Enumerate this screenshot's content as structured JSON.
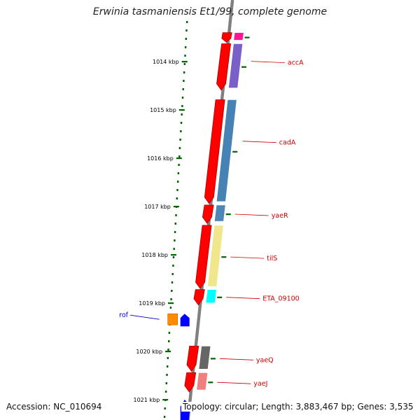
{
  "title": "Erwinia tasmaniensis Et1/99, complete genome",
  "footer": {
    "accession": "Accession: NC_010694",
    "topology": "Topology: circular; Length: 3,883,467 bp; Genes: 3,535"
  },
  "colors": {
    "ruler_tick": "#006400",
    "backbone": "#808080",
    "gene_label": "#cc0000",
    "rof_label": "#0000cc"
  },
  "scale": [
    {
      "label": "1014 kbp",
      "kbp": 1014
    },
    {
      "label": "1015 kbp",
      "kbp": 1015
    },
    {
      "label": "1016 kbp",
      "kbp": 1016
    },
    {
      "label": "1017 kbp",
      "kbp": 1017
    },
    {
      "label": "1018 kbp",
      "kbp": 1018
    },
    {
      "label": "1019 kbp",
      "kbp": 1019
    },
    {
      "label": "1020 kbp",
      "kbp": 1020
    },
    {
      "label": "1021 kbp",
      "kbp": 1021
    }
  ],
  "genes": [
    {
      "label": "",
      "start": 1013.4,
      "end": 1013.6,
      "cds_color": "#ff1493"
    },
    {
      "label": "accA",
      "start": 1013.63,
      "end": 1014.59,
      "cds_color": "#7b5fc9"
    },
    {
      "label": "cadA",
      "start": 1014.79,
      "end": 1016.94,
      "cds_color": "#4682b4"
    },
    {
      "label": "yaeR",
      "start": 1016.97,
      "end": 1017.35,
      "cds_color": "#4f86b8"
    },
    {
      "label": "tilS",
      "start": 1017.39,
      "end": 1018.7,
      "cds_color": "#f0e68c"
    },
    {
      "label": "ETA_09100",
      "start": 1018.72,
      "end": 1019.04,
      "cds_color": "#00ffff"
    },
    {
      "label": "yaeQ",
      "start": 1019.89,
      "end": 1020.41,
      "cds_color": "#666666"
    },
    {
      "label": "yaeJ",
      "start": 1020.44,
      "end": 1020.84,
      "cds_color": "#f08080"
    }
  ],
  "other_features": [
    {
      "label": "rof",
      "start": 1019.22,
      "end": 1019.48,
      "cds_color": "#ff8c00",
      "gene_color": "#0000ff"
    },
    {
      "label": "",
      "start": 1021.0,
      "end": 1021.6,
      "cds_color": "",
      "gene_color": "#0000ff"
    }
  ]
}
